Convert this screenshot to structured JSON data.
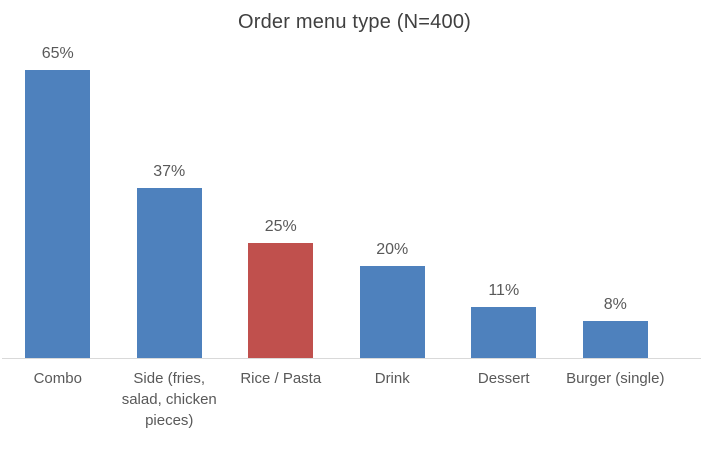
{
  "chart_data": {
    "type": "bar",
    "title": "Order menu type (N=400)",
    "sample_size": 400,
    "categories": [
      "Combo",
      "Side (fries, salad, chicken pieces)",
      "Rice / Pasta",
      "Drink",
      "Dessert",
      "Burger (single)"
    ],
    "values": [
      65,
      37,
      25,
      20,
      11,
      8
    ],
    "data_labels": [
      "65%",
      "37%",
      "25%",
      "20%",
      "11%",
      "8%"
    ],
    "unit": "%",
    "bar_colors": [
      "#4E81BD",
      "#4E81BD",
      "#C0504D",
      "#4E81BD",
      "#4E81BD",
      "#4E81BD"
    ],
    "highlight_index": 2,
    "highlight_category": "Rice / Pasta",
    "ylim": [
      0,
      68
    ],
    "grid": false,
    "legend": false,
    "xlabel": "",
    "ylabel": "",
    "colors": {
      "bar_default": "#4E81BD",
      "bar_highlight": "#C0504D",
      "axis_line": "#D9D9D9",
      "title_text": "#404040",
      "label_text": "#595959",
      "background": "#FFFFFF"
    }
  }
}
